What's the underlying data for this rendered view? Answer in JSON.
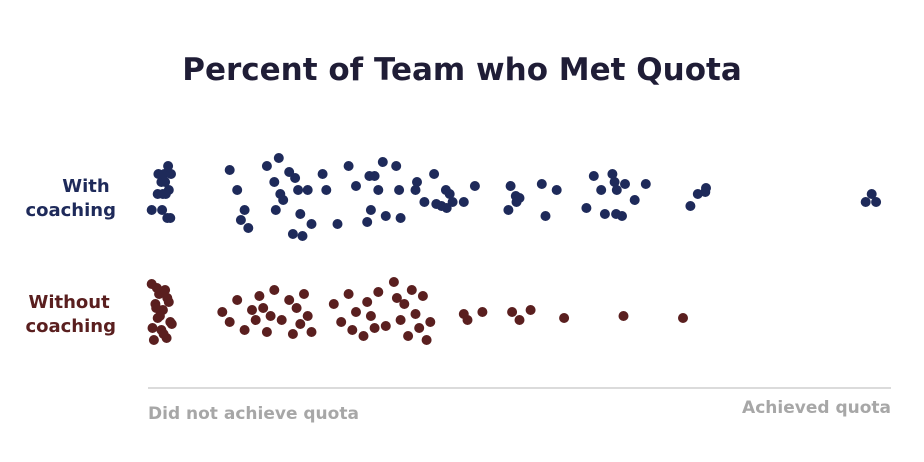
{
  "chart_data": {
    "type": "scatter",
    "title": "Percent of Team who Met Quota",
    "xlabel_left": "Did not achieve quota",
    "xlabel_right": "Achieved quota",
    "colors": {
      "with": "#1e2a5a",
      "without": "#5a1f1f",
      "axis": "#cfcfcf",
      "axis_text": "#a7a7a7",
      "title": "#1f1d36"
    },
    "xlim": [
      0,
      100
    ],
    "series": [
      {
        "name": "With coaching",
        "label_lines": [
          "With",
          "coaching"
        ],
        "x": [
          0.5,
          1.3,
          1.4,
          1.8,
          1.9,
          2.0,
          2.2,
          2.3,
          2.4,
          2.6,
          2.7,
          2.8,
          3.0,
          3.1,
          11,
          12,
          12.5,
          13,
          13.5,
          16,
          17,
          17.2,
          17.6,
          17.8,
          18.2,
          19,
          19.5,
          19.8,
          20.2,
          20.5,
          20.8,
          21.5,
          22,
          23.5,
          24,
          25.5,
          27,
          28,
          29.5,
          29.8,
          30,
          30.5,
          31,
          31.6,
          32,
          33.4,
          33.8,
          34,
          36,
          36.2,
          37.2,
          38.5,
          38.8,
          39.5,
          40.1,
          40.2,
          40.6,
          41,
          42.5,
          44,
          48.5,
          48.8,
          49.5,
          49.6,
          50,
          53,
          53.5,
          55,
          59,
          60,
          61,
          61.5,
          62.5,
          62.8,
          63,
          63.1,
          63.8,
          64.2,
          65.5,
          67,
          73,
          74,
          75,
          75.1,
          96.6,
          97.4,
          98
        ],
        "y": [
          -0.35,
          0.05,
          0.55,
          0.35,
          -0.35,
          0.05,
          0.55,
          0.35,
          0.05,
          -0.55,
          0.75,
          0.15,
          -0.55,
          0.55,
          0.65,
          0.15,
          -0.6,
          -0.35,
          -0.8,
          0.75,
          0.35,
          -0.35,
          0.95,
          0.05,
          -0.1,
          0.6,
          -0.95,
          0.45,
          0.15,
          -0.45,
          -1.0,
          0.15,
          -0.7,
          0.55,
          0.15,
          -0.7,
          0.75,
          0.25,
          -0.65,
          0.5,
          -0.35,
          0.5,
          0.15,
          0.85,
          -0.5,
          0.75,
          0.15,
          -0.55,
          0.15,
          0.35,
          -0.15,
          0.55,
          -0.2,
          -0.25,
          0.15,
          -0.3,
          0.05,
          -0.15,
          -0.15,
          0.25,
          -0.35,
          0.25,
          0.0,
          -0.15,
          -0.05,
          0.3,
          -0.5,
          0.15,
          -0.3,
          0.5,
          0.15,
          -0.45,
          0.55,
          0.35,
          -0.45,
          0.15,
          -0.5,
          0.3,
          -0.1,
          0.3,
          -0.25,
          0.05,
          0.1,
          0.2,
          -0.15,
          0.05,
          -0.15
        ]
      },
      {
        "name": "Without coaching",
        "label_lines": [
          "Without",
          "coaching"
        ],
        "x": [
          0.5,
          0.8,
          1.0,
          1.3,
          1.5,
          1.8,
          2.0,
          2.3,
          2.5,
          2.8,
          3.0,
          0.6,
          1.2,
          1.6,
          2.1,
          2.6,
          3.2,
          1.1,
          10,
          11,
          12,
          13,
          14,
          14.5,
          15,
          15.5,
          16,
          16.5,
          17,
          18,
          19,
          19.5,
          20,
          20.5,
          21,
          21.5,
          22,
          25,
          26,
          27,
          27.5,
          28,
          29,
          29.5,
          30,
          30.5,
          31,
          32,
          33.1,
          33.5,
          34,
          34.5,
          35,
          35.5,
          36,
          36.5,
          37,
          37.5,
          38,
          42.5,
          43,
          45,
          49,
          50,
          51.5,
          56,
          64,
          72
        ],
        "y": [
          0.8,
          -0.6,
          0.3,
          -0.05,
          0.55,
          -0.35,
          0.15,
          0.65,
          -0.55,
          0.35,
          -0.15,
          -0.3,
          0.7,
          0.0,
          -0.45,
          0.45,
          -0.2,
          0.2,
          0.1,
          -0.15,
          0.4,
          -0.35,
          0.15,
          -0.1,
          0.5,
          0.2,
          -0.4,
          0.0,
          0.65,
          -0.1,
          0.4,
          -0.45,
          0.2,
          -0.2,
          0.55,
          0.0,
          -0.4,
          0.3,
          -0.15,
          0.55,
          -0.35,
          0.1,
          -0.5,
          0.35,
          0.0,
          -0.3,
          0.6,
          -0.25,
          0.85,
          0.45,
          -0.1,
          0.3,
          -0.5,
          0.65,
          0.05,
          -0.3,
          0.5,
          -0.6,
          -0.15,
          0.05,
          -0.1,
          0.1,
          0.1,
          -0.1,
          0.15,
          -0.05,
          0.0,
          -0.05
        ]
      }
    ]
  }
}
